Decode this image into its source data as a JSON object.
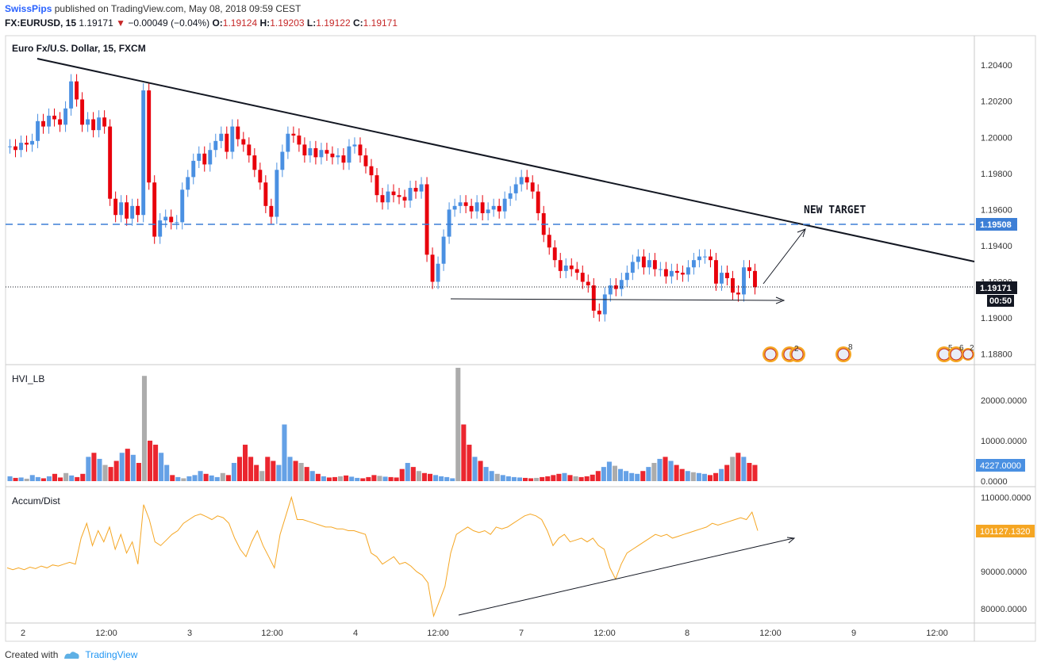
{
  "header": {
    "author": "SwissPips",
    "published_text": "published on TradingView.com, May 08, 2018 09:59 CEST",
    "symbol": "FX:EURUSD, 15",
    "last": "1.19171",
    "change": "−0.00049 (−0.04%)",
    "open_label": "O:",
    "open": "1.19124",
    "high_label": "H:",
    "high": "1.19203",
    "low_label": "L:",
    "low": "1.19122",
    "close_label": "C:",
    "close": "1.19171"
  },
  "colors": {
    "up": "#4a90e2",
    "down": "#e8000b",
    "neutral_volume": "#9e9e9e",
    "accum": "#f5a623",
    "dashed_level": "#3d7fd6",
    "axis_badge": "#131722",
    "hvi_badge": "#4a90e2",
    "accum_badge": "#f5a623"
  },
  "chart_data": [
    {
      "type": "line",
      "title": "Euro Fx/U.S. Dollar, 15, FXCM",
      "y_ticks": [
        "1.20400",
        "1.20200",
        "1.20000",
        "1.19800",
        "1.19600",
        "1.19400",
        "1.19200",
        "1.19000",
        "1.18800"
      ],
      "ylim": [
        1.1875,
        1.2055
      ],
      "x_ticks": [
        "2",
        "12:00",
        "3",
        "12:00",
        "4",
        "12:00",
        "7",
        "12:00",
        "8",
        "12:00",
        "9",
        "12:00"
      ],
      "series": [
        {
          "values": [
            1.1995,
            1.1993,
            1.1997,
            1.1996,
            1.1998,
            1.2009,
            1.2006,
            1.2012,
            1.201,
            1.2007,
            1.2016,
            1.2031,
            1.2021,
            1.2007,
            1.201,
            1.2004,
            1.2011,
            1.2006,
            1.1966,
            1.1957,
            1.1964,
            1.1955,
            1.1962,
            1.1957,
            1.2026,
            1.1975,
            1.1945,
            1.1954,
            1.1956,
            1.1953,
            1.1953,
            1.1971,
            1.1978,
            1.1987,
            1.1991,
            1.1985,
            1.1993,
            1.1998,
            1.2002,
            1.1992,
            1.2006,
            1.1999,
            1.1996,
            1.199,
            1.1982,
            1.1975,
            1.1962,
            1.1956,
            1.1982,
            1.1992,
            1.2002,
            1.2001,
            1.1996,
            1.199,
            1.1994,
            1.1989,
            1.1993,
            1.1991,
            1.1989,
            1.199,
            1.1986,
            1.1995,
            1.1996,
            1.199,
            1.1984,
            1.1979,
            1.1968,
            1.1964,
            1.197,
            1.1968,
            1.1967,
            1.1965,
            1.1972,
            1.197,
            1.1974,
            1.1935,
            1.192,
            1.193,
            1.1945,
            1.196,
            1.1962,
            1.1964,
            1.1962,
            1.1959,
            1.1964,
            1.1958,
            1.196,
            1.1962,
            1.1959,
            1.1966,
            1.1969,
            1.1974,
            1.1978,
            1.1975,
            1.197,
            1.1958,
            1.1946,
            1.1939,
            1.1932,
            1.1926,
            1.1929,
            1.1927,
            1.1925,
            1.192,
            1.1918,
            1.1904,
            1.1902,
            1.1913,
            1.1918,
            1.1916,
            1.1921,
            1.1925,
            1.1931,
            1.1934,
            1.1928,
            1.1932,
            1.1927,
            1.1927,
            1.1923,
            1.1926,
            1.1925,
            1.1924,
            1.1928,
            1.1932,
            1.1934,
            1.1934,
            1.1932,
            1.1919,
            1.1925,
            1.1922,
            1.1914,
            1.1913,
            1.1928,
            1.1926,
            1.1917
          ]
        }
      ]
    },
    {
      "type": "bar",
      "title": "HVI_LB",
      "y_ticks": [
        "20000.0000",
        "10000.0000",
        "0.0000"
      ],
      "ylim": [
        0,
        28000
      ],
      "values": [
        1200,
        800,
        900,
        600,
        1500,
        1000,
        700,
        1200,
        1800,
        900,
        2000,
        1400,
        1000,
        1800,
        6000,
        7000,
        5500,
        4000,
        3500,
        5000,
        7000,
        8000,
        6500,
        4500,
        26000,
        10000,
        9000,
        7000,
        4000,
        1500,
        1000,
        700,
        1200,
        1500,
        2500,
        1800,
        1400,
        1000,
        2000,
        1500,
        4500,
        6000,
        9000,
        6000,
        4000,
        2500,
        6000,
        5000,
        4000,
        14000,
        6000,
        5000,
        4500,
        3500,
        2500,
        1800,
        1200,
        900,
        1000,
        1200,
        1400,
        1100,
        800,
        700,
        1000,
        1500,
        1300,
        1100,
        1000,
        900,
        3000,
        4500,
        3500,
        2500,
        2000,
        1800,
        1500,
        1200,
        1000,
        700,
        28000,
        14000,
        9000,
        6000,
        5000,
        3500,
        2500,
        1800,
        1500,
        1200,
        1000,
        900,
        800,
        700,
        800,
        1000,
        1200,
        1500,
        1800,
        2000,
        1500,
        1200,
        1000,
        1200,
        1600,
        2500,
        3500,
        4800,
        3800,
        3000,
        2500,
        2000,
        1800,
        2500,
        3500,
        4500,
        5500,
        6000,
        5000,
        4000,
        3000,
        2500,
        2200,
        2000,
        1800,
        1500,
        2000,
        3000,
        4000,
        6000,
        7000,
        6000,
        4500,
        4000
      ],
      "last_label": "4227.0000"
    },
    {
      "type": "line",
      "title": "Accum/Dist",
      "y_ticks": [
        "110000.0000",
        "100000.0000",
        "90000.0000",
        "80000.0000"
      ],
      "ylim": [
        77000,
        112000
      ],
      "values": [
        91000,
        90500,
        91000,
        90500,
        91200,
        90800,
        91500,
        91000,
        91800,
        91500,
        92000,
        92500,
        92000,
        99000,
        103000,
        97000,
        101000,
        98000,
        102000,
        96000,
        100000,
        95000,
        98000,
        92000,
        108000,
        104000,
        98000,
        97000,
        98500,
        100000,
        101000,
        103000,
        104000,
        105000,
        105500,
        104800,
        104000,
        105000,
        104500,
        103000,
        99000,
        96000,
        94000,
        98000,
        101000,
        97000,
        94000,
        91000,
        100000,
        105000,
        110000,
        104000,
        104000,
        103500,
        103000,
        102500,
        102000,
        102000,
        101500,
        101500,
        101000,
        101000,
        100500,
        100000,
        95000,
        94000,
        92000,
        93000,
        94000,
        92000,
        92500,
        91500,
        90000,
        89000,
        87000,
        78000,
        82000,
        86000,
        95000,
        100000,
        101000,
        102000,
        101000,
        100500,
        101000,
        100000,
        102000,
        101500,
        102000,
        103000,
        104000,
        105000,
        105500,
        105000,
        104000,
        101000,
        97000,
        99000,
        100000,
        98000,
        98500,
        99000,
        98000,
        99000,
        97000,
        96000,
        91000,
        88000,
        92000,
        95000,
        96000,
        97000,
        98000,
        99000,
        100000,
        99500,
        100000,
        99000,
        99500,
        100000,
        100500,
        101000,
        101500,
        102000,
        103000,
        102500,
        103000,
        103500,
        104000,
        104500,
        104000,
        106000,
        101000
      ],
      "last_label": "101127.1320"
    }
  ],
  "price_axis": {
    "dashed_level_label": "1.19508",
    "current_price_label": "1.19171",
    "countdown_label": "00:50"
  },
  "annotations": {
    "new_target": "NEW TARGET"
  },
  "event_badges": [
    "2",
    "8",
    "5",
    "6",
    "2"
  ],
  "footer": {
    "created_with": "Created with",
    "brand": "TradingView"
  }
}
